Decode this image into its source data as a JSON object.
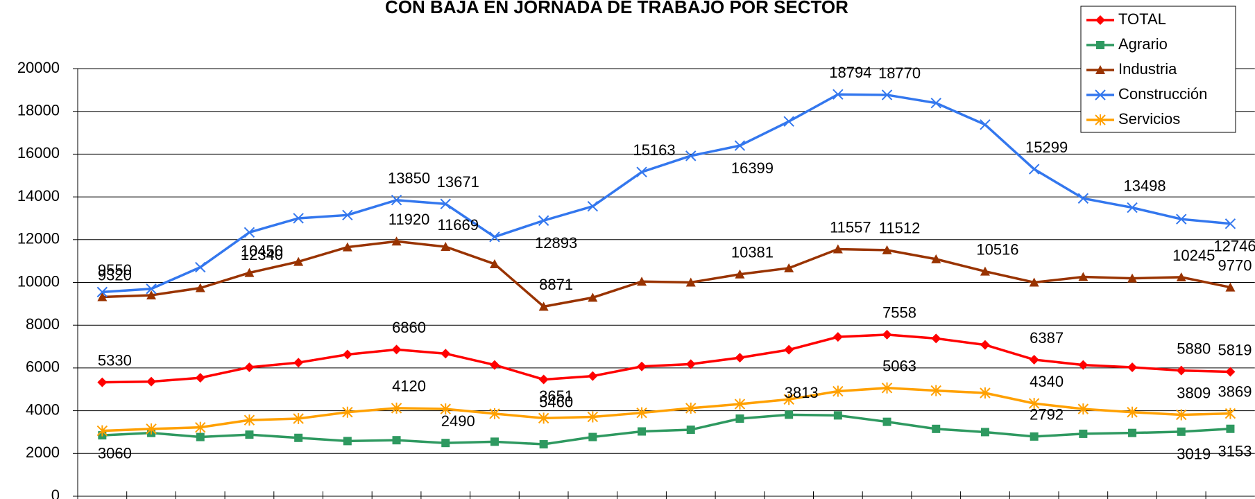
{
  "chart_data": {
    "type": "line",
    "title": "CON BAJA EN JORNADA DE TRABAJO POR SECTOR",
    "categories": [
      null,
      null,
      null,
      null,
      null,
      null,
      null,
      null,
      null,
      null,
      null,
      null,
      null,
      null,
      null,
      null,
      null,
      null,
      null,
      null,
      null,
      null,
      null,
      null
    ],
    "ylim": [
      0,
      20000
    ],
    "yticks": [
      0,
      2000,
      4000,
      6000,
      8000,
      10000,
      12000,
      14000,
      16000,
      18000,
      20000
    ],
    "grid": true,
    "legend": "top-right",
    "series": [
      {
        "name": "TOTAL",
        "color": "#ff0000",
        "marker": "diamond",
        "values": [
          5330,
          5360,
          5540,
          6030,
          6250,
          6630,
          6860,
          6670,
          6140,
          5460,
          5620,
          6070,
          6180,
          6480,
          6850,
          7450,
          7558,
          7380,
          7080,
          6387,
          6140,
          6030,
          5880,
          5819
        ],
        "value_labels": [
          "5330",
          null,
          null,
          null,
          null,
          null,
          "6860",
          null,
          null,
          "5460",
          null,
          null,
          null,
          null,
          null,
          null,
          "7558",
          null,
          null,
          "6387",
          null,
          null,
          "5880",
          "5819"
        ]
      },
      {
        "name": "Agrario",
        "color": "#2e9960",
        "marker": "square",
        "values": [
          2850,
          2960,
          2770,
          2880,
          2730,
          2580,
          2620,
          2490,
          2550,
          2430,
          2770,
          3030,
          3110,
          3630,
          3813,
          3780,
          3480,
          3150,
          3000,
          2792,
          2920,
          2960,
          3019,
          3153
        ],
        "value_labels": [
          null,
          null,
          null,
          null,
          null,
          null,
          null,
          "2490",
          null,
          null,
          null,
          null,
          null,
          null,
          "3813",
          null,
          null,
          null,
          null,
          "2792",
          null,
          null,
          "3019",
          "3153"
        ]
      },
      {
        "name": "Industria",
        "color": "#993300",
        "marker": "triangle",
        "values": [
          9320,
          9400,
          9740,
          10450,
          10970,
          11650,
          11920,
          11669,
          10860,
          8871,
          9290,
          10040,
          10000,
          10381,
          10670,
          11557,
          11512,
          11090,
          10516,
          10000,
          10260,
          10190,
          10245,
          9770
        ],
        "value_labels": [
          "9320",
          null,
          null,
          "10450",
          null,
          null,
          "11920",
          "11669",
          null,
          "8871",
          null,
          null,
          null,
          "10381",
          null,
          "11557",
          "11512",
          null,
          "10516",
          null,
          null,
          null,
          "10245",
          "9770"
        ]
      },
      {
        "name": "Construcción",
        "color": "#3377ee",
        "marker": "x",
        "values": [
          9550,
          9700,
          10710,
          12340,
          13000,
          13150,
          13850,
          13671,
          12130,
          12893,
          13560,
          15163,
          15920,
          16399,
          17530,
          18794,
          18770,
          18390,
          17380,
          15299,
          13930,
          13498,
          12960,
          12746
        ],
        "value_labels": [
          "9550",
          null,
          null,
          "12340",
          null,
          null,
          "13850",
          "13671",
          null,
          "12893",
          null,
          "15163",
          null,
          "16399",
          null,
          "18794",
          "18770",
          null,
          null,
          "15299",
          null,
          "13498",
          null,
          "12746"
        ]
      },
      {
        "name": "Servicios",
        "color": "#ffa000",
        "marker": "star",
        "values": [
          3060,
          3150,
          3220,
          3560,
          3630,
          3930,
          4120,
          4080,
          3860,
          3651,
          3710,
          3900,
          4120,
          4310,
          4530,
          4910,
          5063,
          4940,
          4830,
          4340,
          4080,
          3930,
          3809,
          3869
        ],
        "value_labels": [
          "3060",
          null,
          null,
          null,
          null,
          null,
          "4120",
          null,
          null,
          "3651",
          null,
          null,
          null,
          null,
          null,
          null,
          "5063",
          null,
          null,
          "4340",
          null,
          null,
          "3809",
          "3869"
        ]
      }
    ]
  }
}
